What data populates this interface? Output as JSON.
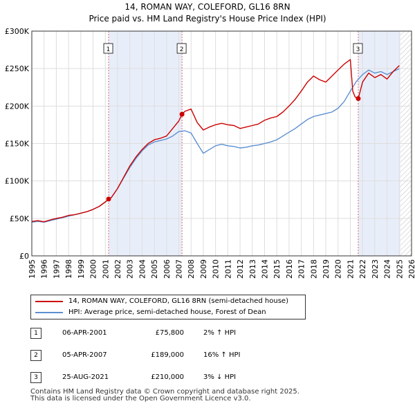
{
  "header": {
    "title": "14, ROMAN WAY, COLEFORD, GL16 8RN",
    "subtitle": "Price paid vs. HM Land Registry's House Price Index (HPI)"
  },
  "chart_data": {
    "type": "line",
    "title": "14, ROMAN WAY, COLEFORD, GL16 8RN",
    "subtitle": "Price paid vs. HM Land Registry's House Price Index (HPI)",
    "xlim": [
      1995,
      2026
    ],
    "ylim": [
      0,
      300000
    ],
    "x_ticks": [
      "1995",
      "1996",
      "1997",
      "1998",
      "1999",
      "2000",
      "2001",
      "2002",
      "2003",
      "2004",
      "2005",
      "2006",
      "2007",
      "2008",
      "2009",
      "2010",
      "2011",
      "2012",
      "2013",
      "2014",
      "2015",
      "2016",
      "2017",
      "2018",
      "2019",
      "2020",
      "2021",
      "2022",
      "2023",
      "2024",
      "2025",
      "2026"
    ],
    "y_ticks": [
      {
        "value": 0,
        "label": "£0"
      },
      {
        "value": 50000,
        "label": "£50K"
      },
      {
        "value": 100000,
        "label": "£100K"
      },
      {
        "value": 150000,
        "label": "£150K"
      },
      {
        "value": 200000,
        "label": "£200K"
      },
      {
        "value": 250000,
        "label": "£250K"
      },
      {
        "value": 300000,
        "label": "£300K"
      }
    ],
    "grid": true,
    "shaded_periods": [
      [
        2001.27,
        2007.26
      ],
      [
        2021.65,
        2025.1
      ]
    ],
    "hatched_from": 2025.1,
    "series": [
      {
        "name": "14, ROMAN WAY, COLEFORD, GL16 8RN (semi-detached house)",
        "color": "#cc0000",
        "x": [
          1995,
          1995.5,
          1996,
          1996.5,
          1997,
          1997.5,
          1998,
          1998.5,
          1999,
          1999.5,
          2000,
          2000.5,
          2001,
          2001.27,
          2001.5,
          2002,
          2002.5,
          2003,
          2003.5,
          2004,
          2004.5,
          2005,
          2005.5,
          2006,
          2006.5,
          2007,
          2007.26,
          2007.5,
          2008,
          2008.5,
          2009,
          2009.5,
          2010,
          2010.5,
          2011,
          2011.5,
          2012,
          2012.5,
          2013,
          2013.5,
          2014,
          2014.5,
          2015,
          2015.5,
          2016,
          2016.5,
          2017,
          2017.5,
          2018,
          2018.5,
          2019,
          2019.5,
          2020,
          2020.5,
          2021,
          2021.2,
          2021.4,
          2021.65,
          2022,
          2022.5,
          2023,
          2023.5,
          2024,
          2024.5,
          2025
        ],
        "y": [
          46000,
          47000,
          45500,
          48000,
          50000,
          51500,
          54000,
          55000,
          57000,
          59000,
          62000,
          66000,
          72000,
          75800,
          78000,
          90000,
          105000,
          120000,
          132000,
          142000,
          150000,
          155000,
          157000,
          160000,
          170000,
          180000,
          189000,
          193000,
          196000,
          178000,
          168000,
          172000,
          175000,
          177000,
          175000,
          174000,
          170000,
          172000,
          174000,
          176000,
          181000,
          184000,
          186000,
          192000,
          200000,
          209000,
          220000,
          232000,
          240000,
          235000,
          232000,
          240000,
          248000,
          256000,
          262000,
          220000,
          212000,
          210000,
          232000,
          244000,
          238000,
          242000,
          236000,
          246000,
          254000
        ]
      },
      {
        "name": "HPI: Average price, semi-detached house, Forest of Dean",
        "color": "#5b8fd1",
        "x": [
          1995,
          1995.5,
          1996,
          1996.5,
          1997,
          1997.5,
          1998,
          1998.5,
          1999,
          1999.5,
          2000,
          2000.5,
          2001,
          2001.5,
          2002,
          2002.5,
          2003,
          2003.5,
          2004,
          2004.5,
          2005,
          2005.5,
          2006,
          2006.5,
          2007,
          2007.5,
          2008,
          2008.5,
          2009,
          2009.5,
          2010,
          2010.5,
          2011,
          2011.5,
          2012,
          2012.5,
          2013,
          2013.5,
          2014,
          2014.5,
          2015,
          2015.5,
          2016,
          2016.5,
          2017,
          2017.5,
          2018,
          2018.5,
          2019,
          2019.5,
          2020,
          2020.5,
          2021,
          2021.5,
          2022,
          2022.5,
          2023,
          2023.5,
          2024,
          2024.5,
          2025
        ],
        "y": [
          45000,
          46000,
          45000,
          47000,
          49000,
          51000,
          53000,
          55000,
          57000,
          59000,
          62000,
          66000,
          72000,
          78000,
          90000,
          104000,
          118000,
          130000,
          140000,
          148000,
          152000,
          154000,
          156000,
          160000,
          166000,
          167000,
          164000,
          150000,
          137000,
          142000,
          147000,
          149000,
          147000,
          146000,
          144000,
          145000,
          147000,
          148000,
          150000,
          152000,
          155000,
          160000,
          165000,
          170000,
          176000,
          182000,
          186000,
          188000,
          190000,
          192000,
          197000,
          206000,
          220000,
          233000,
          242000,
          248000,
          244000,
          246000,
          242000,
          246000,
          250000
        ]
      }
    ],
    "sales": [
      {
        "id": "1",
        "x": 2001.27,
        "y": 75800
      },
      {
        "id": "2",
        "x": 2007.26,
        "y": 189000
      },
      {
        "id": "3",
        "x": 2021.65,
        "y": 210000
      }
    ]
  },
  "legend": {
    "property_label": "14, ROMAN WAY, COLEFORD, GL16 8RN (semi-detached house)",
    "hpi_label": "HPI: Average price, semi-detached house, Forest of Dean",
    "property_color": "#cc0000",
    "hpi_color": "#5b8fd1"
  },
  "sales_table": [
    {
      "id": "1",
      "date": "06-APR-2001",
      "price": "£75,800",
      "hpi": "2% ↑ HPI"
    },
    {
      "id": "2",
      "date": "05-APR-2007",
      "price": "£189,000",
      "hpi": "16% ↑ HPI"
    },
    {
      "id": "3",
      "date": "25-AUG-2021",
      "price": "£210,000",
      "hpi": "3% ↓ HPI"
    }
  ],
  "footer": {
    "line1": "Contains HM Land Registry data © Crown copyright and database right 2025.",
    "line2": "This data is licensed under the Open Government Licence v3.0."
  }
}
